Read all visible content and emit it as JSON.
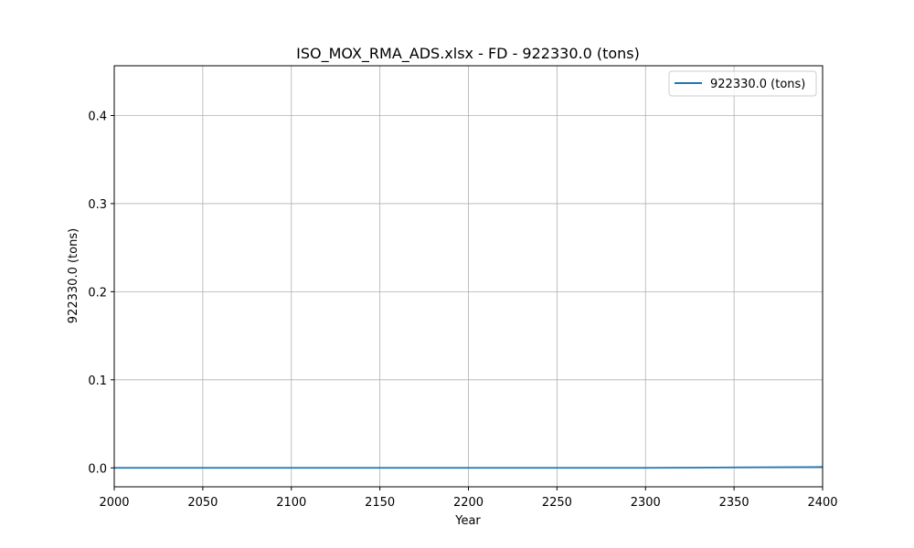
{
  "chart_data": {
    "type": "line",
    "title": "ISO_MOX_RMA_ADS.xlsx - FD - 922330.0 (tons)",
    "xlabel": "Year",
    "ylabel": "922330.0 (tons)",
    "xlim": [
      2000,
      2400
    ],
    "ylim": [
      -0.0215,
      0.4565
    ],
    "xticks": [
      2000,
      2050,
      2100,
      2150,
      2200,
      2250,
      2300,
      2350,
      2400
    ],
    "yticks": [
      0.0,
      0.1,
      0.2,
      0.3,
      0.4
    ],
    "xtick_labels": [
      "2000",
      "2050",
      "2100",
      "2150",
      "2200",
      "2250",
      "2300",
      "2350",
      "2400"
    ],
    "ytick_labels": [
      "0.0",
      "0.1",
      "0.2",
      "0.3",
      "0.4"
    ],
    "grid": true,
    "legend_position": "top-right",
    "series": [
      {
        "name": "922330.0 (tons)",
        "color": "#1f77b4",
        "x": [
          2000,
          2050,
          2100,
          2150,
          2200,
          2250,
          2300,
          2350,
          2400
        ],
        "y": [
          0.0,
          0.0,
          0.0,
          0.0,
          0.0,
          0.0,
          0.0,
          0.0005,
          0.001
        ]
      }
    ]
  }
}
